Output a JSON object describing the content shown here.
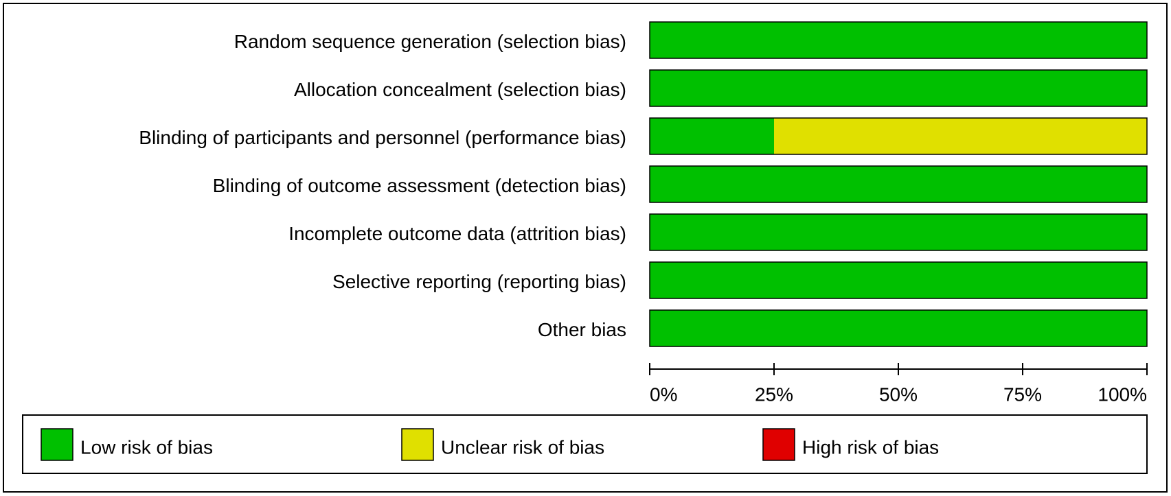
{
  "chart_data": {
    "type": "stacked-barh",
    "categories": [
      "Random sequence generation (selection bias)",
      "Allocation concealment (selection bias)",
      "Blinding of participants and personnel (performance bias)",
      "Blinding of outcome assessment (detection bias)",
      "Incomplete outcome data (attrition bias)",
      "Selective reporting (reporting bias)",
      "Other bias"
    ],
    "series": [
      {
        "name": "Low risk of bias",
        "color": "#00c000",
        "values": [
          100,
          100,
          25,
          100,
          100,
          100,
          100
        ]
      },
      {
        "name": "Unclear risk of bias",
        "color": "#e0e000",
        "values": [
          0,
          0,
          75,
          0,
          0,
          0,
          0
        ]
      },
      {
        "name": "High risk of bias",
        "color": "#e00000",
        "values": [
          0,
          0,
          0,
          0,
          0,
          0,
          0
        ]
      }
    ],
    "xlim": [
      0,
      100
    ],
    "xticks": [
      {
        "value": 0,
        "label": "0%"
      },
      {
        "value": 25,
        "label": "25%"
      },
      {
        "value": 50,
        "label": "50%"
      },
      {
        "value": 75,
        "label": "75%"
      },
      {
        "value": 100,
        "label": "100%"
      }
    ]
  }
}
